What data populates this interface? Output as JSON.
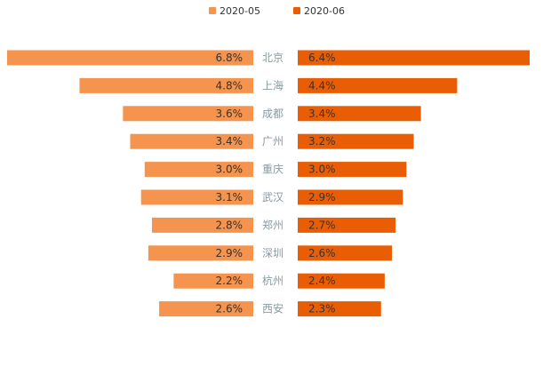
{
  "colors": {
    "left_bar": "#F4944E",
    "right_bar": "#E95E04",
    "value_text": "#333333",
    "category_text": "#8A9AA0"
  },
  "chart_data": {
    "type": "bar",
    "orientation": "horizontal-diverging",
    "title": "",
    "xlabel": "",
    "ylabel": "",
    "legend_position": "top-center",
    "categories": [
      "北京",
      "上海",
      "成都",
      "广州",
      "重庆",
      "武汉",
      "郑州",
      "深圳",
      "杭州",
      "西安"
    ],
    "series": [
      {
        "name": "2020-05",
        "side": "left",
        "values": [
          6.8,
          4.8,
          3.6,
          3.4,
          3.0,
          3.1,
          2.8,
          2.9,
          2.2,
          2.6
        ],
        "labels": [
          "6.8%",
          "4.8%",
          "3.6%",
          "3.4%",
          "3.0%",
          "3.1%",
          "2.8%",
          "2.9%",
          "2.2%",
          "2.6%"
        ]
      },
      {
        "name": "2020-06",
        "side": "right",
        "values": [
          6.4,
          4.4,
          3.4,
          3.2,
          3.0,
          2.9,
          2.7,
          2.6,
          2.4,
          2.3
        ],
        "labels": [
          "6.4%",
          "4.4%",
          "3.4%",
          "3.2%",
          "3.0%",
          "2.9%",
          "2.7%",
          "2.6%",
          "2.4%",
          "2.3%"
        ]
      }
    ],
    "xlim": [
      0,
      6.8
    ]
  }
}
